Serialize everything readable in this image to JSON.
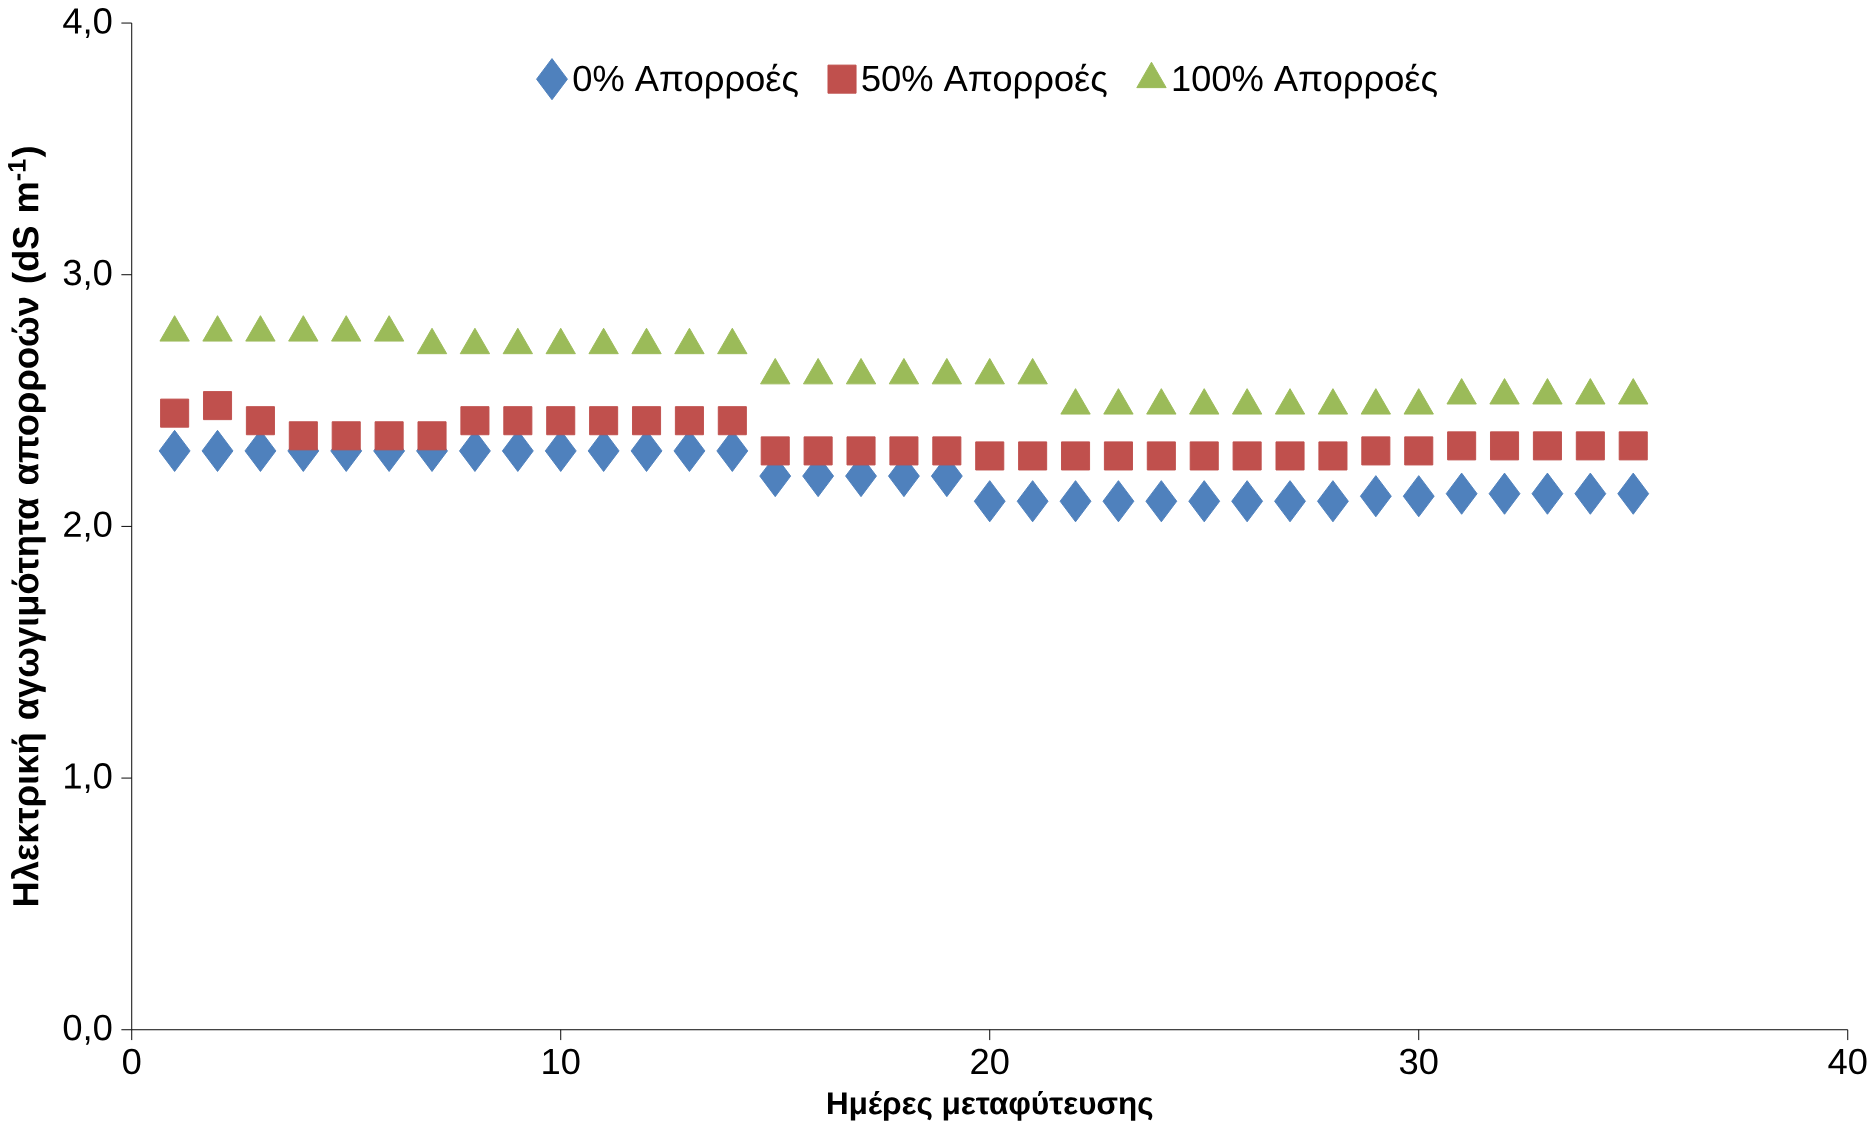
{
  "chart_data": {
    "type": "scatter",
    "xlabel": "Ημέρες μεταφύτευσης",
    "ylabel": "Ηλεκτρική αγωγιμότητα απορροών (dS m$^{-1}$)",
    "x": [
      1,
      2,
      3,
      4,
      5,
      6,
      7,
      8,
      9,
      10,
      11,
      12,
      13,
      14,
      15,
      16,
      17,
      18,
      19,
      20,
      21,
      22,
      23,
      24,
      25,
      26,
      27,
      28,
      29,
      30,
      31,
      32,
      33,
      34,
      35
    ],
    "series": [
      {
        "name": "0% Απορροές",
        "color": "#4f81bd",
        "marker": "diamond",
        "values": [
          2.3,
          2.3,
          2.3,
          2.3,
          2.3,
          2.3,
          2.3,
          2.3,
          2.3,
          2.3,
          2.3,
          2.3,
          2.3,
          2.3,
          2.2,
          2.2,
          2.2,
          2.2,
          2.2,
          2.1,
          2.1,
          2.1,
          2.1,
          2.1,
          2.1,
          2.1,
          2.1,
          2.1,
          2.12,
          2.12,
          2.13,
          2.13,
          2.13,
          2.13,
          2.13
        ]
      },
      {
        "name": "50% Απορροές",
        "color": "#c0504d",
        "marker": "square",
        "values": [
          2.45,
          2.48,
          2.42,
          2.36,
          2.36,
          2.36,
          2.36,
          2.42,
          2.42,
          2.42,
          2.42,
          2.42,
          2.42,
          2.42,
          2.3,
          2.3,
          2.3,
          2.3,
          2.3,
          2.28,
          2.28,
          2.28,
          2.28,
          2.28,
          2.28,
          2.28,
          2.28,
          2.28,
          2.3,
          2.3,
          2.32,
          2.32,
          2.32,
          2.32,
          2.32
        ]
      },
      {
        "name": "100% Απορροές",
        "color": "#9bbb59",
        "marker": "triangle",
        "values": [
          2.77,
          2.77,
          2.77,
          2.77,
          2.77,
          2.77,
          2.72,
          2.72,
          2.72,
          2.72,
          2.72,
          2.72,
          2.72,
          2.72,
          2.6,
          2.6,
          2.6,
          2.6,
          2.6,
          2.6,
          2.6,
          2.48,
          2.48,
          2.48,
          2.48,
          2.48,
          2.48,
          2.48,
          2.48,
          2.48,
          2.52,
          2.52,
          2.52,
          2.52,
          2.52
        ]
      }
    ],
    "xlim": [
      0,
      40
    ],
    "xticks": [
      0,
      10,
      20,
      30,
      40
    ],
    "ylim": [
      0,
      4
    ],
    "yticks": [
      {
        "value": 0,
        "label": "0,0"
      },
      {
        "value": 1,
        "label": "1,0"
      },
      {
        "value": 2,
        "label": "2,0"
      },
      {
        "value": 3,
        "label": "3,0"
      },
      {
        "value": 4,
        "label": "4,0"
      }
    ],
    "legend": "top",
    "grid": false
  }
}
